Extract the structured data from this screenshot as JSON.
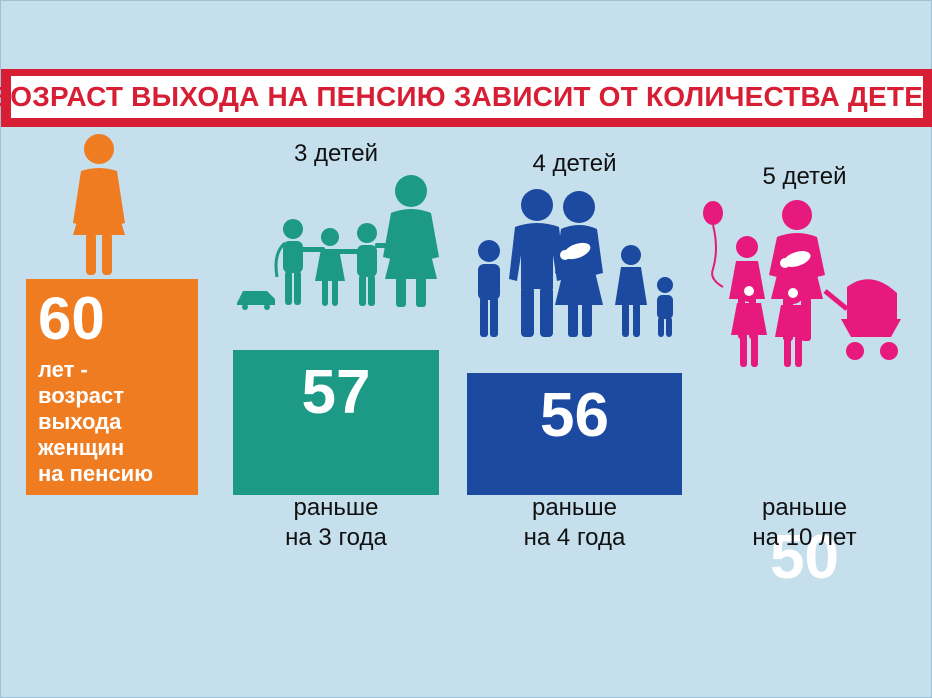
{
  "title": "ВОЗРАСТ ВЫХОДА НА ПЕНСИЮ ЗАВИСИТ ОТ КОЛИЧЕСТВА ДЕТЕЙ",
  "colors": {
    "background": "#c5dfec",
    "banner": "#d81e35",
    "orange": "#f07c22",
    "teal": "#1c9a86",
    "blue": "#1b4aa0",
    "pink": "#e7197d"
  },
  "base": {
    "value": "60",
    "note_lines": [
      "лет -",
      "возраст",
      "выхода",
      "женщин",
      "на пенсию"
    ]
  },
  "icons": [
    "woman-icon",
    "family-3-children-icon",
    "family-4-children-icon",
    "family-5-children-icon"
  ],
  "chart_data": {
    "type": "bar",
    "title": "ВОЗРАСТ ВЫХОДА НА ПЕНСИЮ ЗАВИСИТ ОТ КОЛИЧЕСТВА ДЕТЕЙ",
    "categories": [
      "",
      "3 детей",
      "4 детей",
      "5 детей"
    ],
    "values": [
      60,
      57,
      56,
      50
    ],
    "value_labels": [
      "60",
      "57",
      "56",
      "50"
    ],
    "earlier_labels": [
      null,
      [
        "раньше",
        "на 3 года"
      ],
      [
        "раньше",
        "на 4 года"
      ],
      [
        "раньше",
        "на 10  лет"
      ]
    ],
    "bar_colors": [
      "#f07c22",
      "#1c9a86",
      "#1b4aa0",
      "#e7197d"
    ],
    "xlabel": "",
    "ylabel": "",
    "grid": false
  }
}
